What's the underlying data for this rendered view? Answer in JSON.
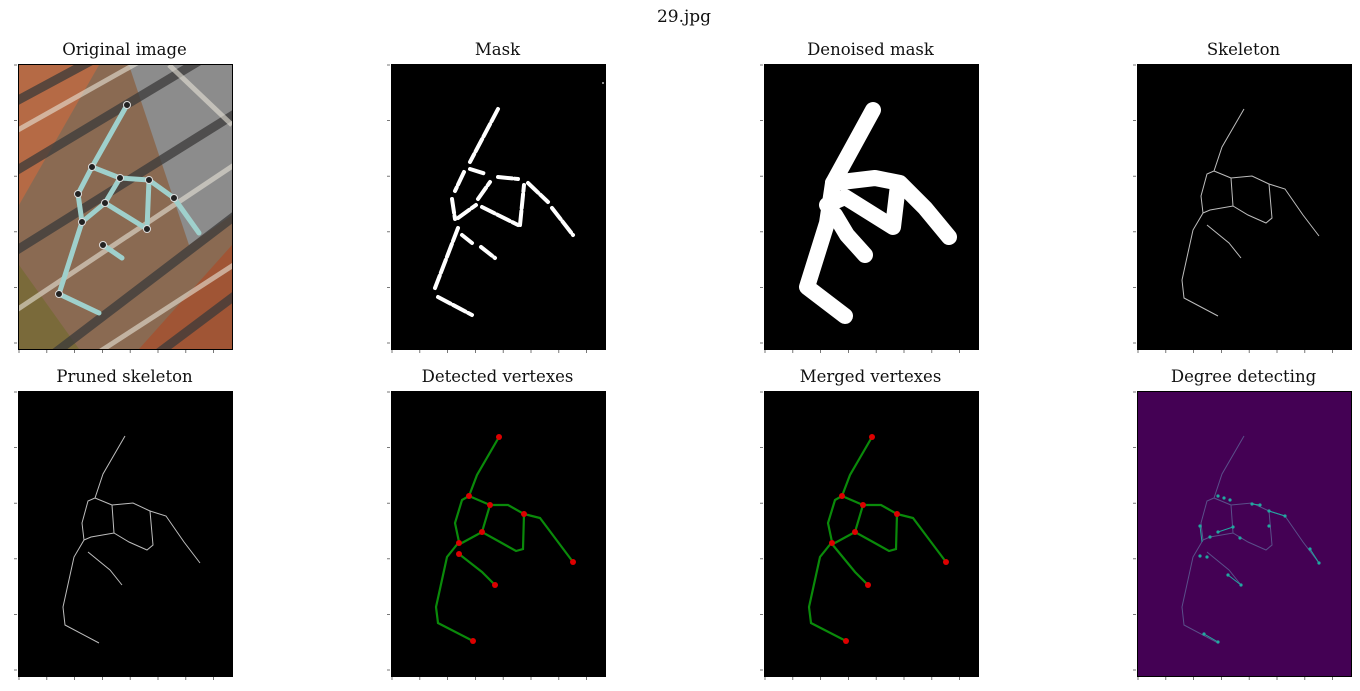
{
  "figure": {
    "suptitle": "29.jpg",
    "panels": [
      {
        "title": "Original image",
        "kind": "photo"
      },
      {
        "title": "Mask",
        "kind": "mask"
      },
      {
        "title": "Denoised mask",
        "kind": "denoised"
      },
      {
        "title": "Skeleton",
        "kind": "skeleton"
      },
      {
        "title": "Pruned skeleton",
        "kind": "pruned"
      },
      {
        "title": "Detected vertexes",
        "kind": "detected"
      },
      {
        "title": "Merged vertexes",
        "kind": "merged"
      },
      {
        "title": "Degree detecting",
        "kind": "degree"
      }
    ]
  },
  "colors": {
    "edge": "#0a8a0a",
    "vertex": "#dd0000",
    "degree_background": "#440154",
    "degree_marker": "#21a8a0",
    "skeleton_line": "#bdbdbd"
  },
  "chart_data": {
    "type": "image-grid",
    "rows": 2,
    "columns": 4,
    "graph": {
      "detected_vertex_count": 9,
      "merged_vertex_count": 8
    }
  }
}
